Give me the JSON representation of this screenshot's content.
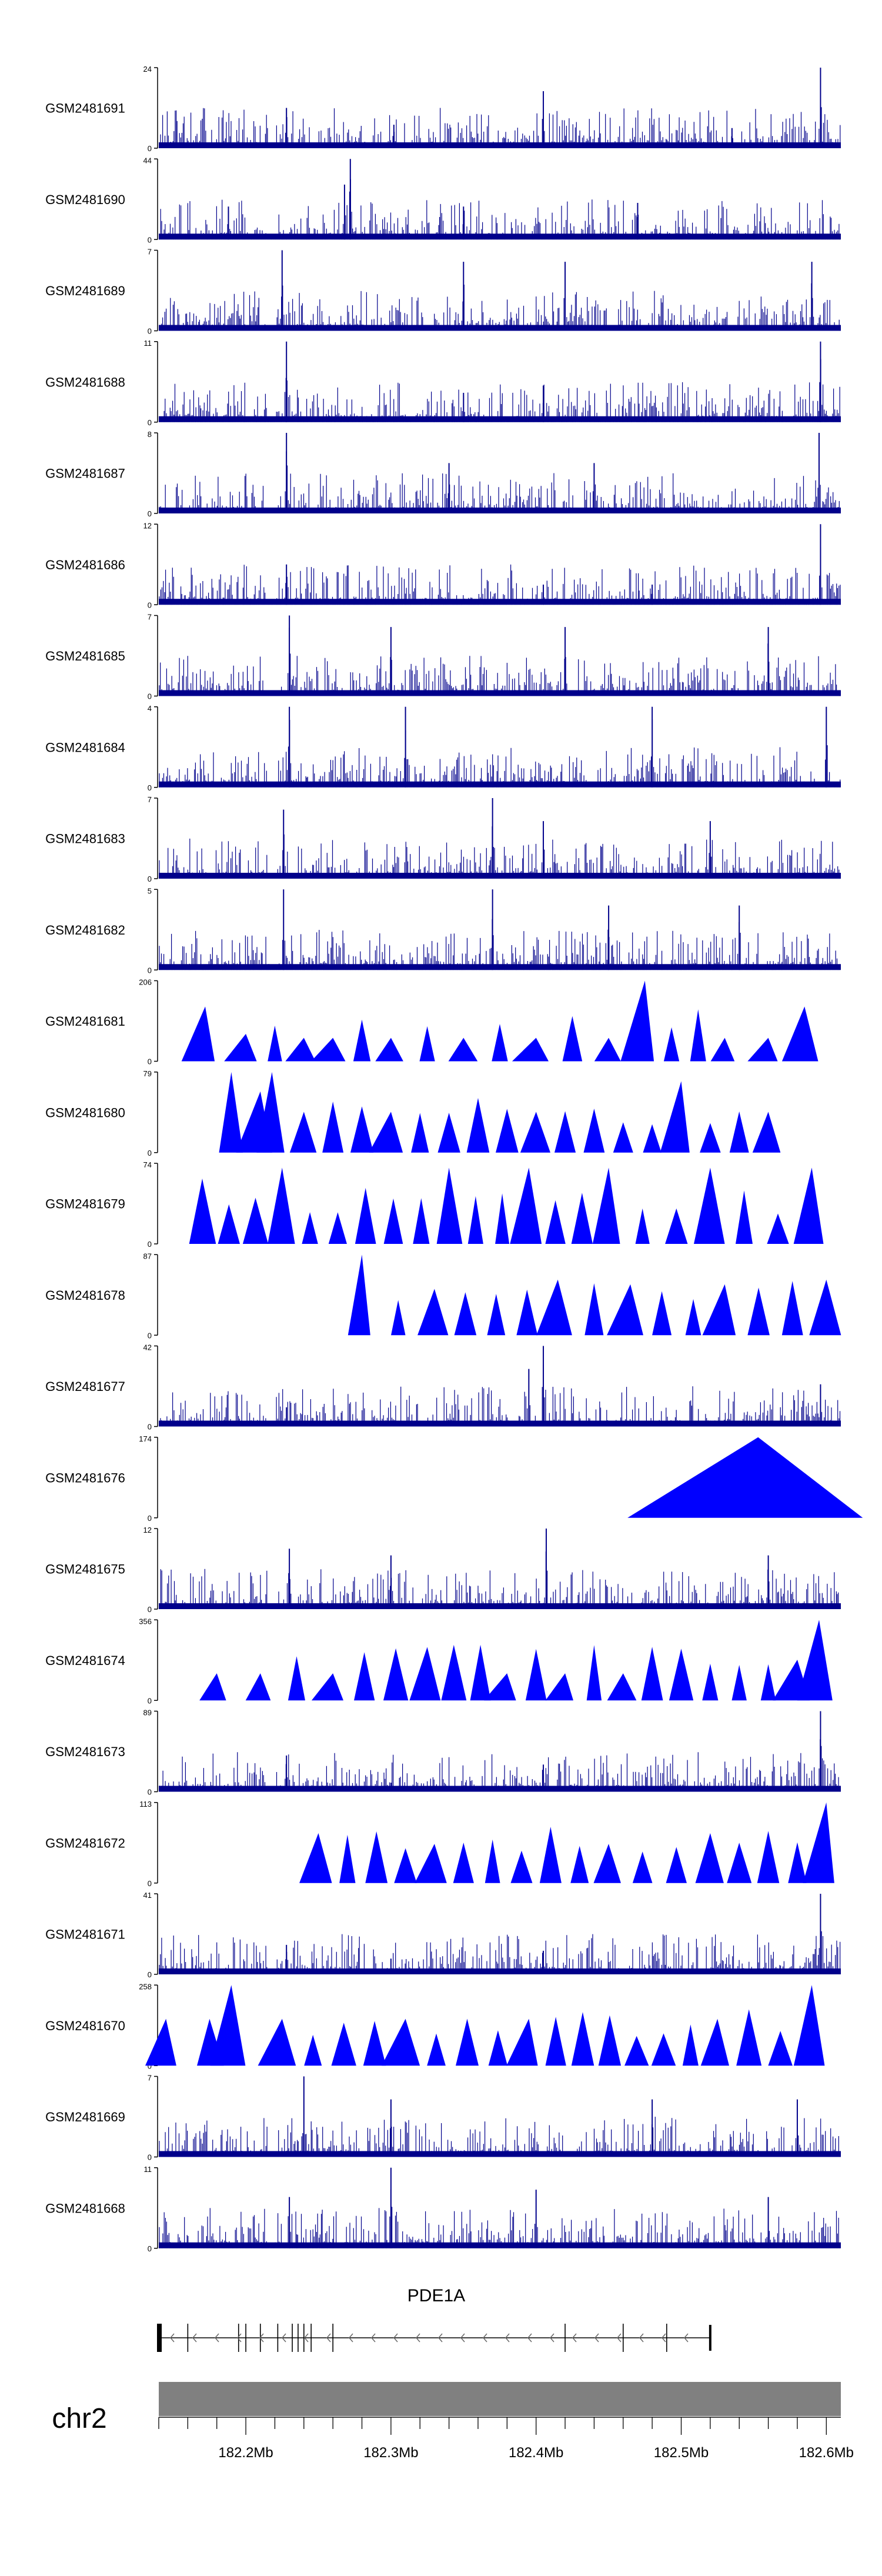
{
  "chart_data": {
    "type": "area",
    "title": "",
    "xlabel": "",
    "ylabel": "",
    "xlim": [
      182140000,
      182610000
    ],
    "x_ticks": [
      182200000,
      182300000,
      182400000,
      182500000,
      182600000
    ],
    "x_tick_labels": [
      "182.2Mb",
      "182.3Mb",
      "182.4Mb",
      "182.5Mb",
      "182.6Mb"
    ],
    "grid": false,
    "legend": "none",
    "track_color": "#0000FF",
    "dense_track_color": "#00008B",
    "tracks": [
      {
        "name": "GSM2481691",
        "ymax": 24,
        "ymin": 0,
        "style": "dense",
        "peaks": [
          [
            182228000,
            12
          ],
          [
            182405000,
            17
          ],
          [
            182596000,
            24
          ],
          [
            182302000,
            7
          ],
          [
            182535000,
            6
          ]
        ]
      },
      {
        "name": "GSM2481690",
        "ymax": 44,
        "ymin": 0,
        "style": "dense",
        "peaks": [
          [
            182272000,
            44
          ],
          [
            182268000,
            30
          ],
          [
            182188000,
            18
          ],
          [
            182470000,
            20
          ],
          [
            182350000,
            18
          ]
        ]
      },
      {
        "name": "GSM2481689",
        "ymax": 7,
        "ymin": 0,
        "style": "dense",
        "peaks": [
          [
            182225000,
            7
          ],
          [
            182350000,
            6
          ],
          [
            182420000,
            6
          ],
          [
            182590000,
            6
          ]
        ]
      },
      {
        "name": "GSM2481688",
        "ymax": 11,
        "ymin": 0,
        "style": "dense",
        "peaks": [
          [
            182228000,
            11
          ],
          [
            182596000,
            11
          ],
          [
            182405000,
            5
          ],
          [
            182350000,
            4
          ]
        ]
      },
      {
        "name": "GSM2481687",
        "ymax": 8,
        "ymin": 0,
        "style": "dense",
        "peaks": [
          [
            182228000,
            8
          ],
          [
            182595000,
            8
          ],
          [
            182340000,
            5
          ],
          [
            182440000,
            5
          ]
        ]
      },
      {
        "name": "GSM2481686",
        "ymax": 12,
        "ymin": 0,
        "style": "dense",
        "peaks": [
          [
            182596000,
            12
          ],
          [
            182228000,
            6
          ],
          [
            182405000,
            3
          ],
          [
            182480000,
            3
          ]
        ]
      },
      {
        "name": "GSM2481685",
        "ymax": 7,
        "ymin": 0,
        "style": "dense",
        "peaks": [
          [
            182230000,
            7
          ],
          [
            182300000,
            6
          ],
          [
            182420000,
            6
          ],
          [
            182560000,
            6
          ]
        ]
      },
      {
        "name": "GSM2481684",
        "ymax": 4,
        "ymin": 0,
        "style": "dense",
        "peaks": [
          [
            182230000,
            4
          ],
          [
            182310000,
            4
          ],
          [
            182480000,
            4
          ],
          [
            182600000,
            4
          ]
        ]
      },
      {
        "name": "GSM2481683",
        "ymax": 7,
        "ymin": 0,
        "style": "dense",
        "peaks": [
          [
            182226000,
            6
          ],
          [
            182370000,
            7
          ],
          [
            182405000,
            5
          ],
          [
            182520000,
            5
          ]
        ]
      },
      {
        "name": "GSM2481682",
        "ymax": 5,
        "ymin": 0,
        "style": "dense",
        "peaks": [
          [
            182226000,
            5
          ],
          [
            182370000,
            5
          ],
          [
            182450000,
            4
          ],
          [
            182540000,
            4
          ]
        ]
      },
      {
        "name": "GSM2481681",
        "ymax": 206,
        "ymin": 0,
        "style": "sparse",
        "peaks": [
          [
            182172000,
            140
          ],
          [
            182200000,
            70
          ],
          [
            182240000,
            60
          ],
          [
            182260000,
            60
          ],
          [
            182300000,
            60
          ],
          [
            182350000,
            60
          ],
          [
            182400000,
            60
          ],
          [
            182450000,
            60
          ],
          [
            182475000,
            206
          ],
          [
            182530000,
            60
          ],
          [
            182560000,
            60
          ],
          [
            182585000,
            140
          ]
        ]
      },
      {
        "name": "GSM2481680",
        "ymax": 79,
        "ymin": 0,
        "style": "sparse",
        "peaks": [
          [
            182190000,
            79
          ],
          [
            182210000,
            60
          ],
          [
            182218000,
            79
          ],
          [
            182240000,
            40
          ],
          [
            182300000,
            40
          ],
          [
            182400000,
            40
          ],
          [
            182500000,
            70
          ],
          [
            182560000,
            40
          ]
        ]
      },
      {
        "name": "GSM2481679",
        "ymax": 74,
        "ymin": 0,
        "style": "sparse",
        "peaks": [
          [
            182170000,
            60
          ],
          [
            182225000,
            70
          ],
          [
            182340000,
            70
          ],
          [
            182395000,
            70
          ],
          [
            182450000,
            70
          ],
          [
            182520000,
            70
          ],
          [
            182590000,
            70
          ]
        ]
      },
      {
        "name": "GSM2481678",
        "ymax": 87,
        "ymin": 0,
        "style": "sparse",
        "peaks": [
          [
            182280000,
            87
          ],
          [
            182330000,
            50
          ],
          [
            182415000,
            60
          ],
          [
            182465000,
            55
          ],
          [
            182530000,
            55
          ],
          [
            182600000,
            60
          ]
        ]
      },
      {
        "name": "GSM2481677",
        "ymax": 42,
        "ymin": 0,
        "style": "dense",
        "peaks": [
          [
            182405000,
            42
          ],
          [
            182395000,
            30
          ],
          [
            182228000,
            10
          ],
          [
            182596000,
            22
          ]
        ]
      },
      {
        "name": "GSM2481676",
        "ymax": 174,
        "ymin": 0,
        "style": "sparse",
        "peaks": [
          [
            182553000,
            174
          ]
        ]
      },
      {
        "name": "GSM2481675",
        "ymax": 12,
        "ymin": 0,
        "style": "dense",
        "peaks": [
          [
            182407000,
            12
          ],
          [
            182230000,
            9
          ],
          [
            182300000,
            8
          ],
          [
            182560000,
            8
          ]
        ]
      },
      {
        "name": "GSM2481674",
        "ymax": 356,
        "ymin": 0,
        "style": "sparse",
        "peaks": [
          [
            182180000,
            120
          ],
          [
            182210000,
            120
          ],
          [
            182260000,
            120
          ],
          [
            182325000,
            236
          ],
          [
            182380000,
            120
          ],
          [
            182420000,
            120
          ],
          [
            182460000,
            120
          ],
          [
            182595000,
            356
          ],
          [
            182580000,
            180
          ]
        ]
      },
      {
        "name": "GSM2481673",
        "ymax": 89,
        "ymin": 0,
        "style": "dense",
        "peaks": [
          [
            182596000,
            89
          ],
          [
            182228000,
            40
          ],
          [
            182405000,
            30
          ],
          [
            182300000,
            10
          ]
        ]
      },
      {
        "name": "GSM2481672",
        "ymax": 113,
        "ymin": 0,
        "style": "sparse",
        "peaks": [
          [
            182600000,
            113
          ],
          [
            182520000,
            70
          ],
          [
            182250000,
            70
          ],
          [
            182330000,
            55
          ],
          [
            182450000,
            55
          ]
        ]
      },
      {
        "name": "GSM2481671",
        "ymax": 41,
        "ymin": 0,
        "style": "dense",
        "peaks": [
          [
            182596000,
            41
          ],
          [
            182228000,
            15
          ],
          [
            182405000,
            12
          ],
          [
            182300000,
            8
          ]
        ]
      },
      {
        "name": "GSM2481670",
        "ymax": 258,
        "ymin": 0,
        "style": "sparse",
        "peaks": [
          [
            182145000,
            150
          ],
          [
            182190000,
            258
          ],
          [
            182175000,
            150
          ],
          [
            182225000,
            150
          ],
          [
            182310000,
            150
          ],
          [
            182395000,
            150
          ],
          [
            182525000,
            150
          ],
          [
            182590000,
            258
          ]
        ]
      },
      {
        "name": "GSM2481669",
        "ymax": 7,
        "ymin": 0,
        "style": "dense",
        "peaks": [
          [
            182240000,
            7
          ],
          [
            182300000,
            5
          ],
          [
            182480000,
            5
          ],
          [
            182580000,
            5
          ]
        ]
      },
      {
        "name": "GSM2481668",
        "ymax": 11,
        "ymin": 0,
        "style": "dense",
        "peaks": [
          [
            182300000,
            11
          ],
          [
            182400000,
            8
          ],
          [
            182230000,
            7
          ],
          [
            182560000,
            7
          ]
        ]
      }
    ],
    "gene_track": {
      "gene_name": "PDE1A",
      "start": 182140000,
      "end": 182520000,
      "strand": "-"
    },
    "ideogram": {
      "chromosome": "chr2",
      "color": "#808080"
    }
  }
}
